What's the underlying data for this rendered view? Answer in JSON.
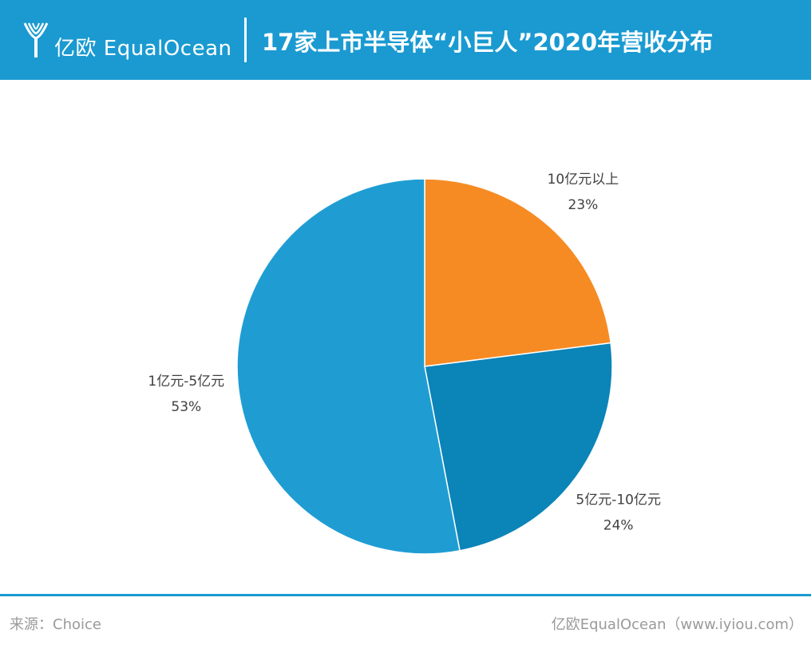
{
  "header": {
    "logo_text": "亿欧 EqualOcean",
    "title": "17家上市半导体“小巨人”2020年营收分布",
    "background_color": "#1a9ad1",
    "logo_icon": "equalocean-logo-icon"
  },
  "chart_data": {
    "type": "pie",
    "slices": [
      {
        "label": "10亿元以上",
        "value": 23,
        "value_label": "23%",
        "color": "#f68b24"
      },
      {
        "label": "5亿元-10亿元",
        "value": 24,
        "value_label": "24%",
        "color": "#0b84b8"
      },
      {
        "label": "1亿元-5亿元",
        "value": 53,
        "value_label": "53%",
        "color": "#1f9dd3"
      }
    ],
    "start_angle": "12 o'clock",
    "direction": "clockwise",
    "legend": "none (labels placed outside slices)"
  },
  "footer": {
    "source": "来源：Choice",
    "credit": "亿欧EqualOcean（www.iyiou.com）",
    "rule_color": "#1a9ad1"
  }
}
